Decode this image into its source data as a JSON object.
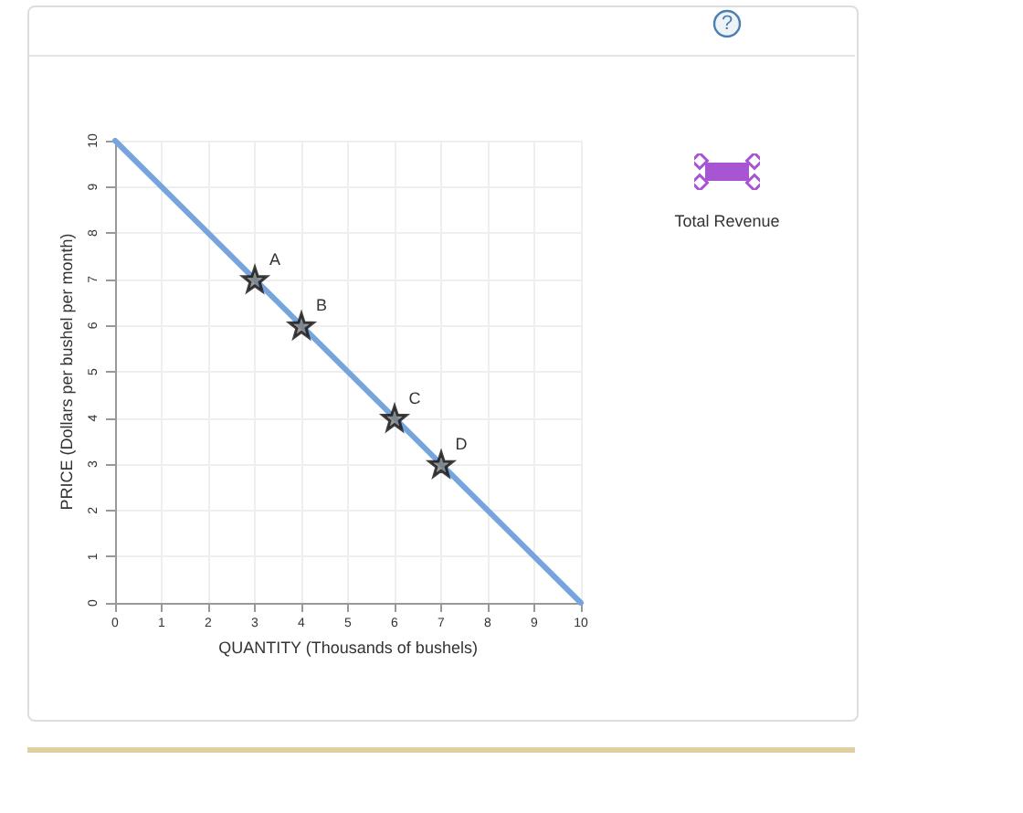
{
  "chart_data": {
    "type": "line",
    "xlabel": "QUANTITY (Thousands of bushels)",
    "ylabel": "PRICE (Dollars per bushel per month)",
    "xlim": [
      0,
      10
    ],
    "xticks": [
      0,
      1,
      2,
      3,
      4,
      5,
      6,
      7,
      8,
      9,
      10
    ],
    "ylim": [
      0,
      10
    ],
    "yticks": [
      0,
      1,
      2,
      3,
      4,
      5,
      6,
      7,
      8,
      9,
      10
    ],
    "grid": true,
    "series": [
      {
        "color": "#76a5dd",
        "x": [
          0,
          10
        ],
        "values": [
          10,
          0
        ],
        "marker": "none",
        "line_style": "solid"
      },
      {
        "type": "scatter",
        "color": "#808080",
        "x": [
          3,
          4,
          6,
          7
        ],
        "values": [
          7,
          6,
          4,
          3
        ],
        "marker": "star"
      }
    ],
    "annotations": [
      {
        "text": "A",
        "x": 3,
        "y": 7
      },
      {
        "text": "B",
        "x": 4,
        "y": 6
      },
      {
        "text": "C",
        "x": 6,
        "y": 4
      },
      {
        "text": "D",
        "x": 7,
        "y": 3
      },
      "Total Revenue",
      "?"
    ]
  }
}
